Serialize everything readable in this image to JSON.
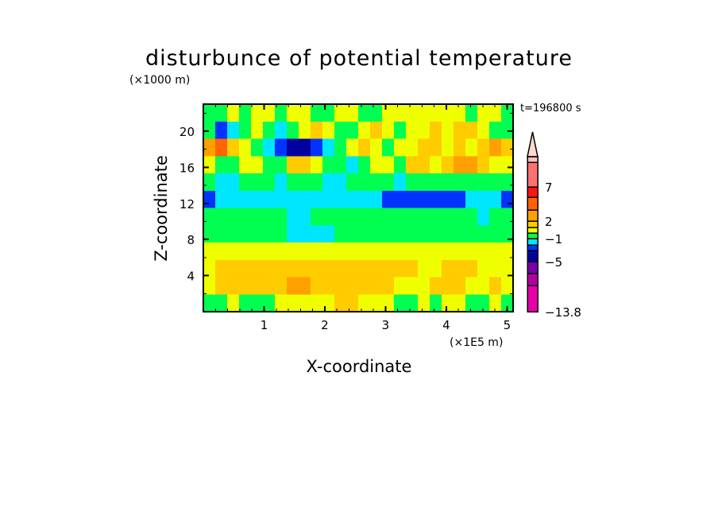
{
  "chart_data": {
    "type": "heatmap",
    "title": "disturbunce of potential temperature",
    "xlabel": "X-coordinate",
    "ylabel": "Z-coordinate",
    "x_unit": "(×1E5 m)",
    "y_unit": "(×1000 m)",
    "time_label": "t=196800 s",
    "xlim": [
      0,
      5.1
    ],
    "ylim": [
      0,
      23
    ],
    "xticks": [
      "1",
      "2",
      "3",
      "4",
      "5"
    ],
    "xtick_values": [
      1,
      2,
      3,
      4,
      5
    ],
    "yticks": [
      "4",
      "8",
      "12",
      "16",
      "20"
    ],
    "ytick_values": [
      4,
      8,
      12,
      16,
      20
    ],
    "colorbar": {
      "colors": [
        "#e600aa",
        "#b400a0",
        "#7800a8",
        "#0000a0",
        "#0033ff",
        "#00e6ff",
        "#00ff50",
        "#f0ff00",
        "#ffcc00",
        "#ffa000",
        "#ff6400",
        "#ff1414",
        "#ff7070",
        "#ffc0c0"
      ],
      "extend_color": "#ffd8d0",
      "labels": [
        "-13.8",
        "-5",
        "-1",
        "2",
        "7"
      ],
      "label_boundaries": [
        0,
        3,
        6,
        9,
        12
      ]
    },
    "grid_note_levels": "z values are color level indices into colorbar.colors",
    "z_rows_top_to_bottom": [
      "6 6 7 6 7 7 6 7 7 6 6 7 7 6 6 7 7 7 7 7 7 7 6 7 7 6",
      "6 4 5 6 7 6 5 6 7 8 7 6 6 7 8 7 6 7 7 8 7 8 8 7 6 6",
      "9 10 8 7 6 5 4 3 3 4 5 6 7 8 7 6 7 7 8 8 7 8 7 8 9 8",
      "7 6 6 7 7 6 6 8 8 7 6 6 5 6 7 7 6 8 8 7 8 9 9 8 7 7",
      "6 5 5 6 6 6 5 6 6 6 5 5 6 6 6 6 5 6 6 6 6 6 6 6 6 6",
      "4 5 5 5 5 5 5 5 5 5 5 5 5 5 5 4 4 4 4 4 4 4 5 5 5 4",
      "6 6 6 6 6 6 6 5 5 6 6 6 6 6 6 6 6 6 6 6 6 6 6 5 6 6",
      "6 6 6 6 6 6 6 5 5 5 5 6 6 6 6 6 6 6 6 6 6 6 6 6 6 6",
      "7 7 7 7 7 7 7 7 7 7 7 7 7 7 7 7 7 7 7 7 7 7 7 7 7 7",
      "7 8 8 8 8 8 8 8 8 8 8 8 8 8 8 8 8 8 7 7 8 8 8 7 7 7",
      "7 8 8 8 8 8 8 9 9 8 8 8 8 8 8 8 7 7 7 8 8 8 7 7 8 7",
      "6 6 7 6 6 6 7 7 7 7 7 8 8 7 7 7 6 6 7 6 7 7 6 6 7 6"
    ]
  }
}
